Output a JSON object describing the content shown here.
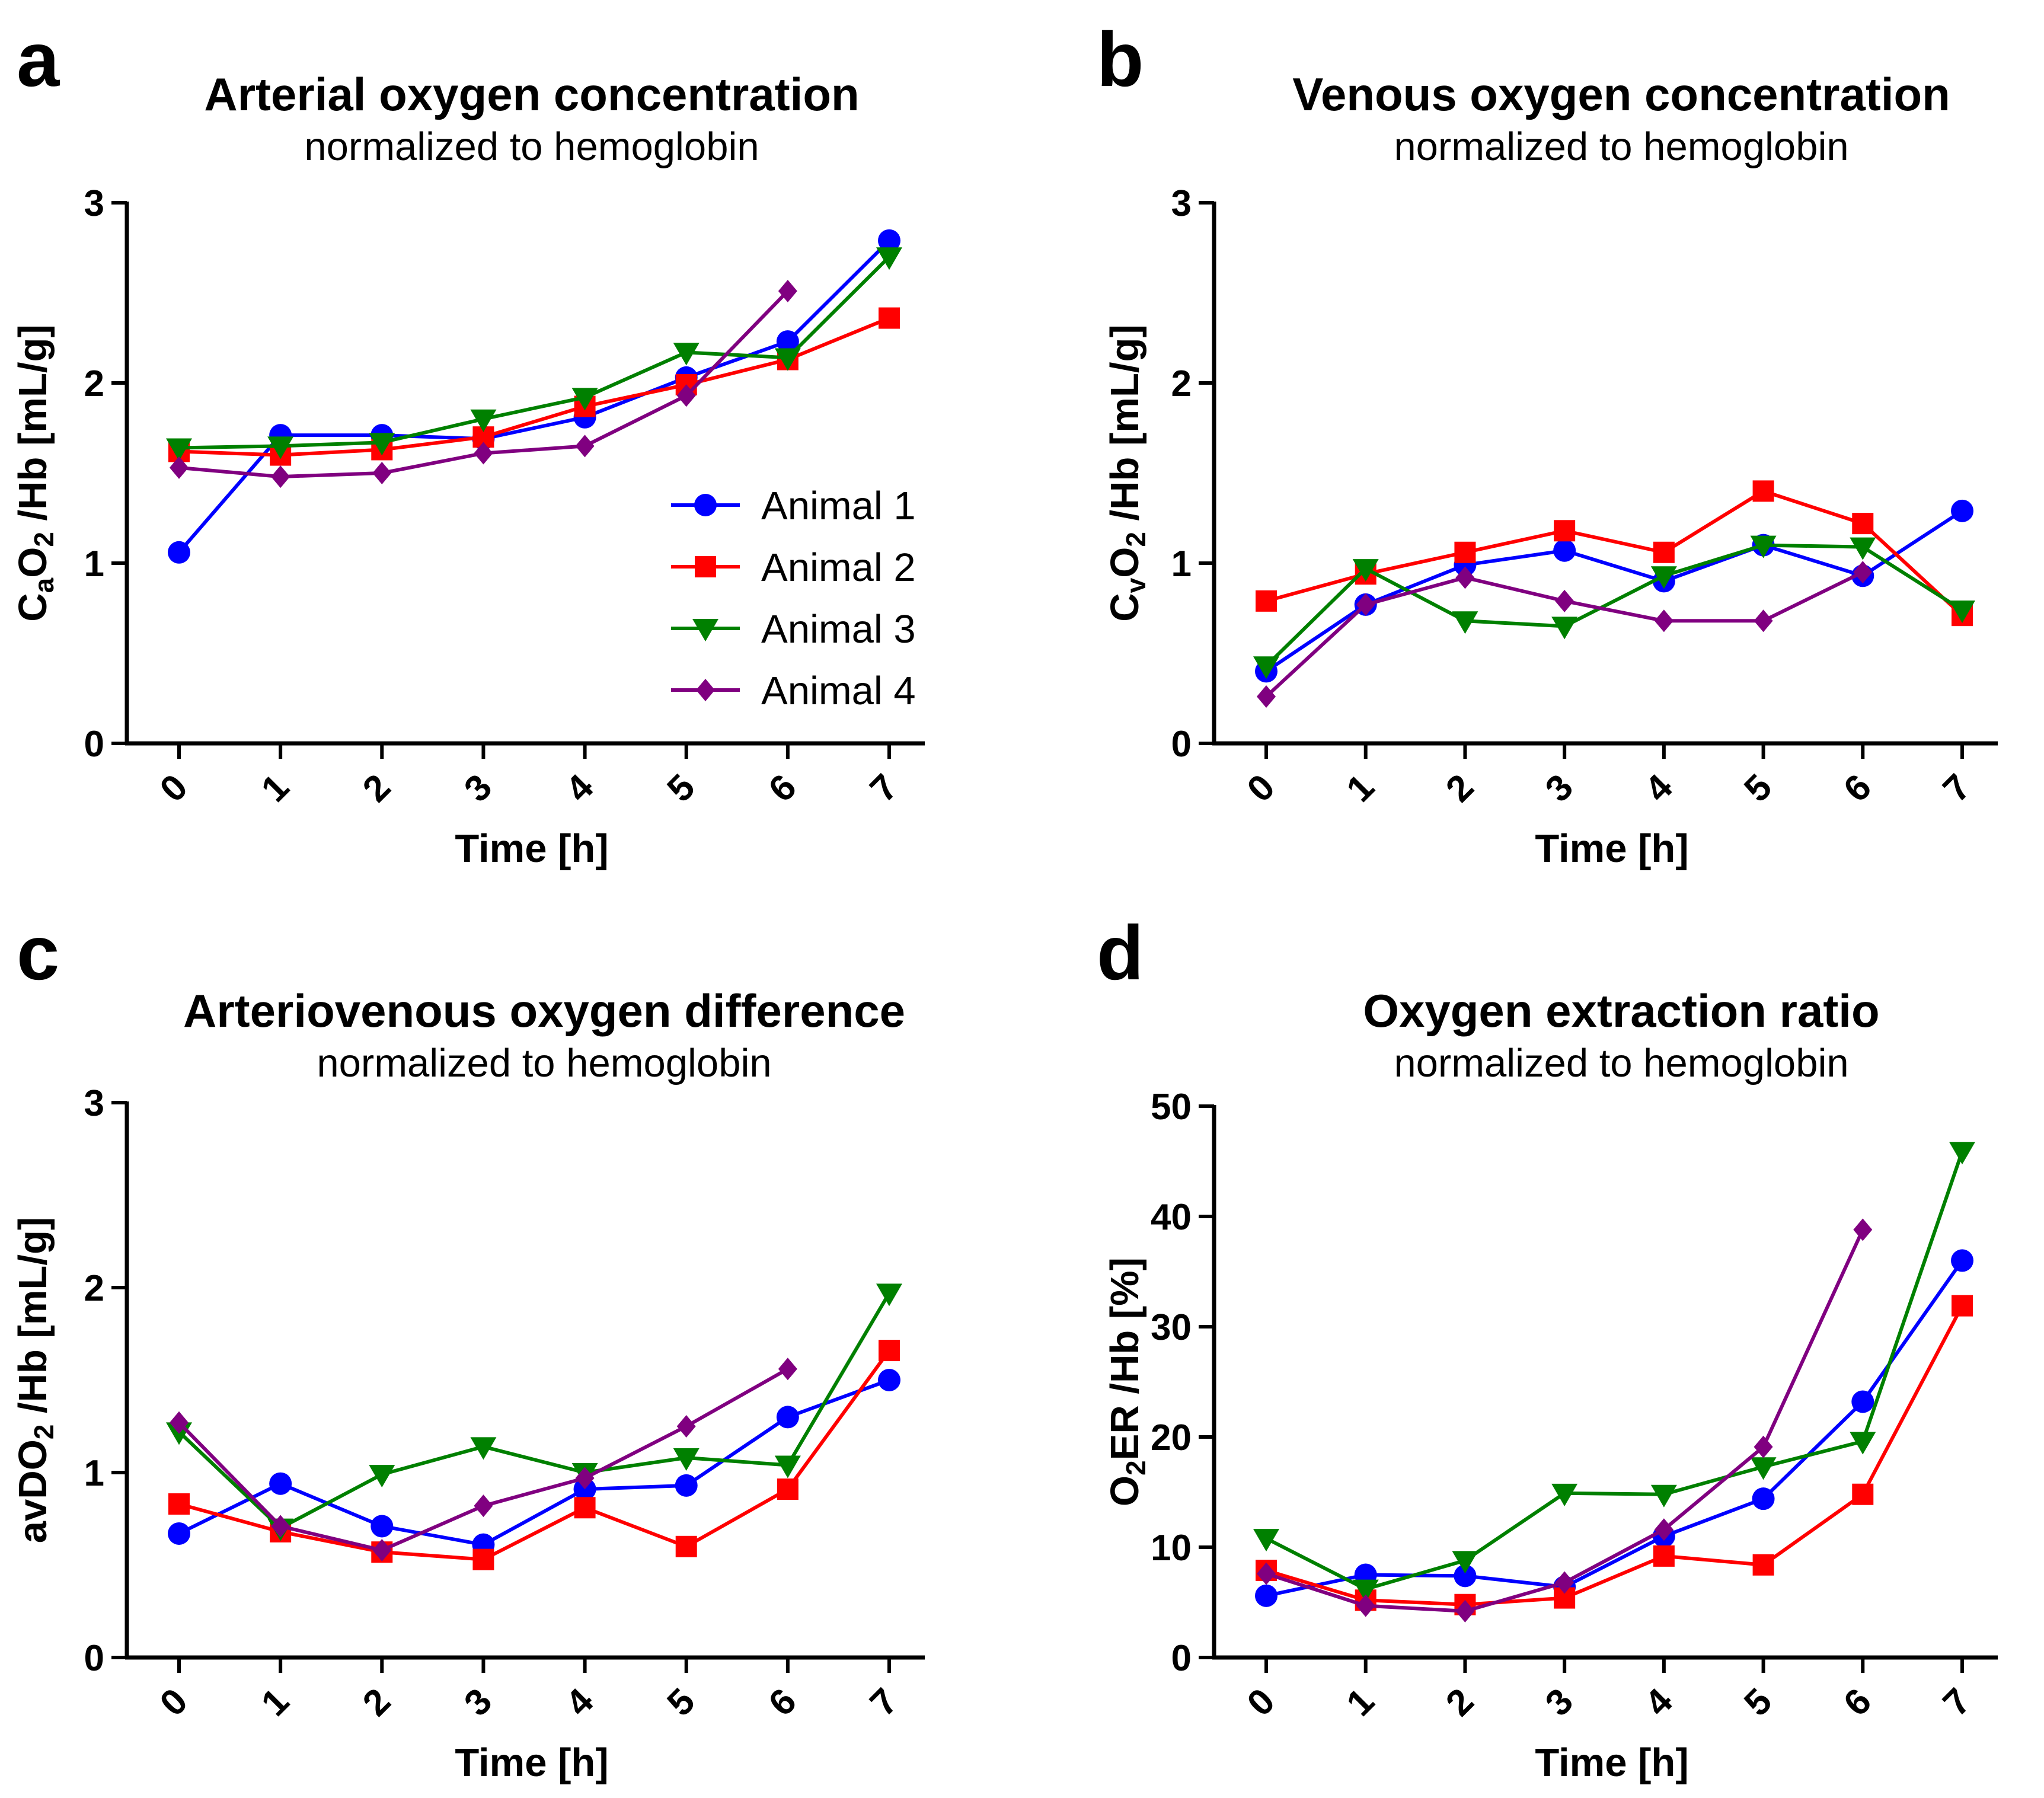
{
  "series_styles": [
    {
      "name": "Animal 1",
      "color": "#0000ff",
      "marker": "circle"
    },
    {
      "name": "Animal 2",
      "color": "#ff0000",
      "marker": "square"
    },
    {
      "name": "Animal 3",
      "color": "#008000",
      "marker": "triangle-down"
    },
    {
      "name": "Animal 4",
      "color": "#800080",
      "marker": "diamond"
    }
  ],
  "chart_data": [
    {
      "panel": "a",
      "type": "line",
      "title": "Arterial oxygen concentration",
      "subtitle": "normalized to hemoglobin",
      "xlabel": "Time [h]",
      "ylabel": "CaO2 /Hb [mL/g]",
      "ylabel_parts": [
        "C",
        "a",
        "O",
        "2",
        " /Hb [mL/g]"
      ],
      "x": [
        0,
        1,
        2,
        3,
        4,
        5,
        6,
        7
      ],
      "xticks": [
        "0",
        "1",
        "2",
        "3",
        "4",
        "5",
        "6",
        "7"
      ],
      "ylim": [
        0,
        3
      ],
      "yticks": [
        "0",
        "1",
        "2",
        "3"
      ],
      "legend": "bottom-right",
      "series": [
        {
          "name": "Animal 1",
          "values": [
            1.06,
            1.71,
            1.71,
            1.69,
            1.81,
            2.03,
            2.23,
            2.79
          ]
        },
        {
          "name": "Animal 2",
          "values": [
            1.62,
            1.6,
            1.63,
            1.7,
            1.87,
            1.99,
            2.13,
            2.36
          ]
        },
        {
          "name": "Animal 3",
          "values": [
            1.64,
            1.65,
            1.67,
            1.8,
            1.92,
            2.17,
            2.14,
            2.7
          ]
        },
        {
          "name": "Animal 4",
          "values": [
            1.53,
            1.48,
            1.5,
            1.61,
            1.65,
            1.93,
            2.51,
            null
          ]
        }
      ]
    },
    {
      "panel": "b",
      "type": "line",
      "title": "Venous oxygen concentration",
      "subtitle": "normalized to hemoglobin",
      "xlabel": "Time [h]",
      "ylabel": "CvO2 /Hb [mL/g]",
      "ylabel_parts": [
        "C",
        "v",
        "O",
        "2",
        " /Hb [mL/g]"
      ],
      "x": [
        0,
        1,
        2,
        3,
        4,
        5,
        6,
        7
      ],
      "xticks": [
        "0",
        "1",
        "2",
        "3",
        "4",
        "5",
        "6",
        "7"
      ],
      "ylim": [
        0,
        3
      ],
      "yticks": [
        "0",
        "1",
        "2",
        "3"
      ],
      "series": [
        {
          "name": "Animal 1",
          "values": [
            0.4,
            0.77,
            0.99,
            1.07,
            0.9,
            1.1,
            0.93,
            1.29
          ]
        },
        {
          "name": "Animal 2",
          "values": [
            0.79,
            0.94,
            1.06,
            1.18,
            1.06,
            1.4,
            1.22,
            0.71
          ]
        },
        {
          "name": "Animal 3",
          "values": [
            0.43,
            0.97,
            0.68,
            0.65,
            0.93,
            1.1,
            1.09,
            0.74
          ]
        },
        {
          "name": "Animal 4",
          "values": [
            0.26,
            0.77,
            0.92,
            0.79,
            0.68,
            0.68,
            0.95,
            null
          ]
        }
      ]
    },
    {
      "panel": "c",
      "type": "line",
      "title": "Arteriovenous oxygen difference",
      "subtitle": "normalized to hemoglobin",
      "xlabel": "Time [h]",
      "ylabel": "avDO2 /Hb [mL/g]",
      "ylabel_parts": [
        "avDO",
        "2",
        " /Hb [mL/g]"
      ],
      "x": [
        0,
        1,
        2,
        3,
        4,
        5,
        6,
        7
      ],
      "xticks": [
        "0",
        "1",
        "2",
        "3",
        "4",
        "5",
        "6",
        "7"
      ],
      "ylim": [
        0,
        3
      ],
      "yticks": [
        "0",
        "1",
        "2",
        "3"
      ],
      "series": [
        {
          "name": "Animal 1",
          "values": [
            0.67,
            0.94,
            0.71,
            0.61,
            0.91,
            0.93,
            1.3,
            1.5
          ]
        },
        {
          "name": "Animal 2",
          "values": [
            0.83,
            0.68,
            0.57,
            0.53,
            0.81,
            0.6,
            0.91,
            1.66
          ]
        },
        {
          "name": "Animal 3",
          "values": [
            1.22,
            0.7,
            0.99,
            1.14,
            1.0,
            1.08,
            1.04,
            1.97
          ]
        },
        {
          "name": "Animal 4",
          "values": [
            1.27,
            0.71,
            0.58,
            0.82,
            0.97,
            1.25,
            1.56,
            null
          ]
        }
      ]
    },
    {
      "panel": "d",
      "type": "line",
      "title": "Oxygen extraction ratio",
      "subtitle": "normalized to hemoglobin",
      "xlabel": "Time [h]",
      "ylabel": "O2ER /Hb [%]",
      "ylabel_parts": [
        "O",
        "2",
        "ER /Hb [%]"
      ],
      "x": [
        0,
        1,
        2,
        3,
        4,
        5,
        6,
        7
      ],
      "xticks": [
        "0",
        "1",
        "2",
        "3",
        "4",
        "5",
        "6",
        "7"
      ],
      "ylim": [
        0,
        50
      ],
      "yticks": [
        "0",
        "10",
        "20",
        "30",
        "40",
        "50"
      ],
      "series": [
        {
          "name": "Animal 1",
          "values": [
            5.6,
            7.5,
            7.4,
            6.4,
            11.0,
            14.4,
            23.2,
            36.0
          ]
        },
        {
          "name": "Animal 2",
          "values": [
            7.9,
            5.2,
            4.8,
            5.4,
            9.2,
            8.4,
            14.8,
            31.9
          ]
        },
        {
          "name": "Animal 3",
          "values": [
            10.8,
            6.2,
            8.8,
            14.9,
            14.8,
            17.3,
            19.6,
            45.9
          ]
        },
        {
          "name": "Animal 4",
          "values": [
            7.6,
            4.7,
            4.2,
            6.8,
            11.6,
            19.1,
            38.8,
            null
          ]
        }
      ]
    }
  ]
}
